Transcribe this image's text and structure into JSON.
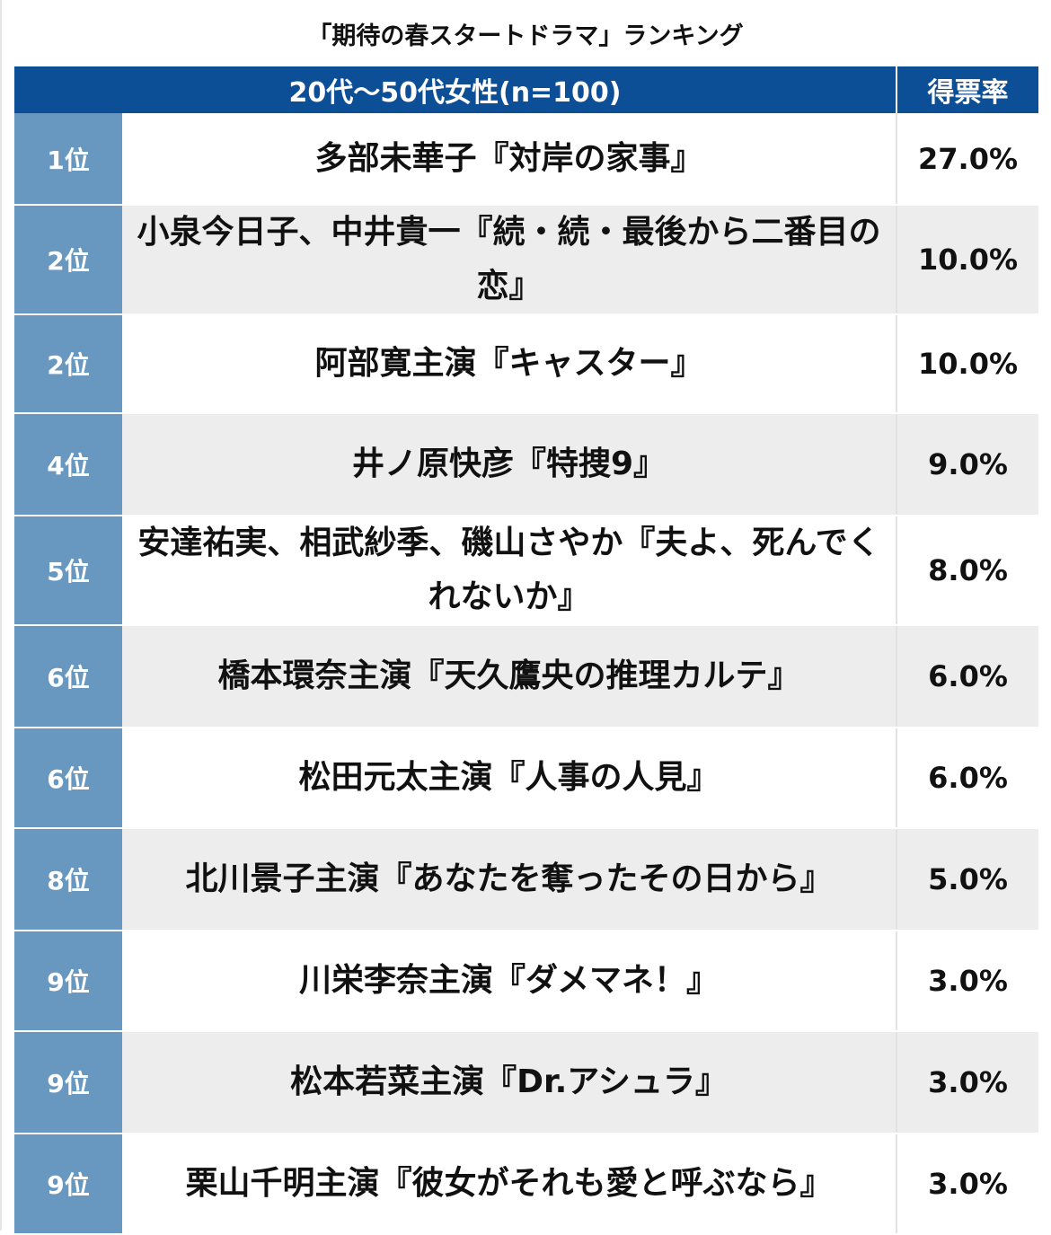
{
  "chart_data": {
    "type": "table",
    "title": "「期待の春スタートドラマ」ランキング",
    "header": {
      "group": "20代〜50代女性(n=100)",
      "rate": "得票率"
    },
    "rows": [
      {
        "rank": "1位",
        "title": "多部未華子『対岸の家事』",
        "rate": "27.0%",
        "value": 27.0
      },
      {
        "rank": "2位",
        "title": "小泉今日子、中井貴一『続・続・最後から二番目の恋』",
        "rate": "10.0%",
        "value": 10.0
      },
      {
        "rank": "2位",
        "title": "阿部寛主演『キャスター』",
        "rate": "10.0%",
        "value": 10.0
      },
      {
        "rank": "4位",
        "title": "井ノ原快彦『特捜9』",
        "rate": "9.0%",
        "value": 9.0
      },
      {
        "rank": "5位",
        "title": "安達祐実、相武紗季、磯山さやか『夫よ、死んでくれないか』",
        "rate": "8.0%",
        "value": 8.0
      },
      {
        "rank": "6位",
        "title": "橋本環奈主演『天久鷹央の推理カルテ』",
        "rate": "6.0%",
        "value": 6.0
      },
      {
        "rank": "6位",
        "title": "松田元太主演『人事の人見』",
        "rate": "6.0%",
        "value": 6.0
      },
      {
        "rank": "8位",
        "title": "北川景子主演『あなたを奪ったその日から』",
        "rate": "5.0%",
        "value": 5.0
      },
      {
        "rank": "9位",
        "title": "川栄李奈主演『ダメマネ！』",
        "rate": "3.0%",
        "value": 3.0
      },
      {
        "rank": "9位",
        "title": "松本若菜主演『Dr.アシュラ』",
        "rate": "3.0%",
        "value": 3.0
      },
      {
        "rank": "9位",
        "title": "栗山千明主演『彼女がそれも愛と呼ぶなら』",
        "rate": "3.0%",
        "value": 3.0
      }
    ]
  },
  "colors": {
    "header_bg": "#0d4f97",
    "rank_bg": "#6897c0",
    "row_alt_bg": "#ededed"
  }
}
